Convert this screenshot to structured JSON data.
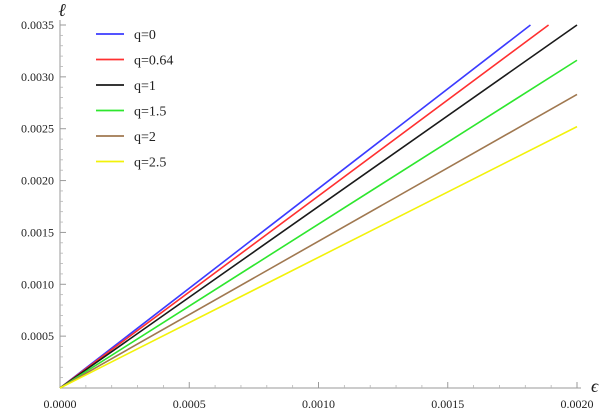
{
  "chart_data": {
    "type": "line",
    "title": "",
    "xlabel": "ϵ",
    "ylabel": "ℓ",
    "xlim": [
      0,
      0.002
    ],
    "ylim": [
      0,
      0.0035
    ],
    "x_ticks": [
      "0.0000",
      "0.0005",
      "0.0010",
      "0.0015",
      "0.0020"
    ],
    "y_ticks": [
      "0.0005",
      "0.0010",
      "0.0015",
      "0.0020",
      "0.0025",
      "0.0030",
      "0.0035"
    ],
    "grid": false,
    "legend_position": "top-left",
    "series": [
      {
        "name": "q=0",
        "color": "#3b3bff",
        "x": [
          0,
          0.00182
        ],
        "y": [
          0,
          0.0035
        ]
      },
      {
        "name": "q=0.64",
        "color": "#ff3030",
        "x": [
          0,
          0.00189
        ],
        "y": [
          0,
          0.0035
        ]
      },
      {
        "name": "q=1",
        "color": "#1a1a1a",
        "x": [
          0,
          0.002
        ],
        "y": [
          0,
          0.0035
        ]
      },
      {
        "name": "q=1.5",
        "color": "#2ee62e",
        "x": [
          0,
          0.002
        ],
        "y": [
          0,
          0.00316
        ]
      },
      {
        "name": "q=2",
        "color": "#a07850",
        "x": [
          0,
          0.002
        ],
        "y": [
          0,
          0.00283
        ]
      },
      {
        "name": "q=2.5",
        "color": "#f2f20a",
        "x": [
          0,
          0.002
        ],
        "y": [
          0,
          0.00252
        ]
      }
    ]
  }
}
